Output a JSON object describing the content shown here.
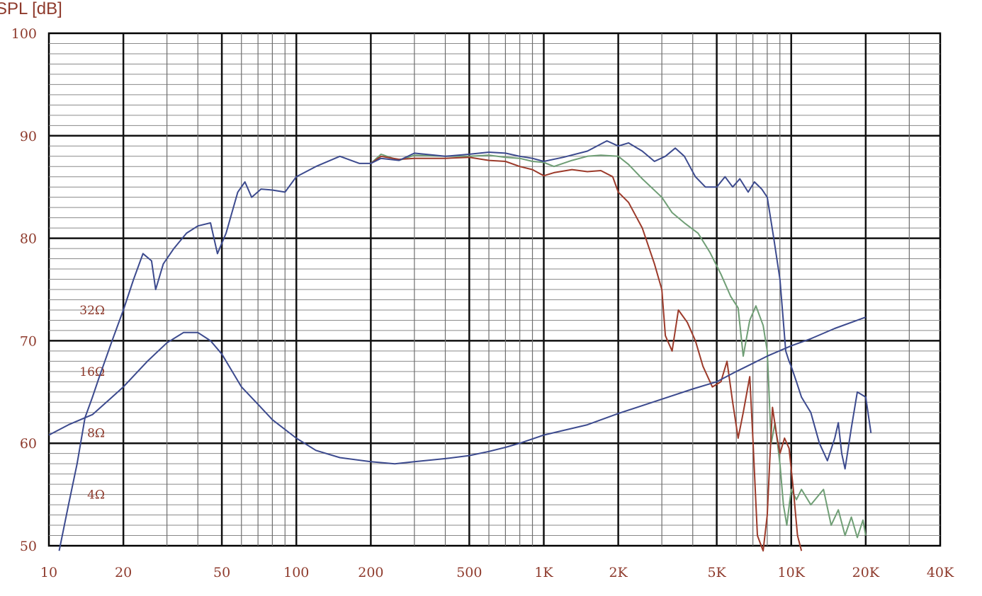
{
  "chart_data": {
    "type": "line",
    "ylabel": "SPL [dB]",
    "x_scale": "log",
    "xlim": [
      10,
      40000
    ],
    "ylim": [
      50,
      100
    ],
    "grid": true,
    "x_tick_labels": [
      {
        "v": 10,
        "t": "10"
      },
      {
        "v": 20,
        "t": "20"
      },
      {
        "v": 50,
        "t": "50"
      },
      {
        "v": 100,
        "t": "100"
      },
      {
        "v": 200,
        "t": "200"
      },
      {
        "v": 500,
        "t": "500"
      },
      {
        "v": 1000,
        "t": "1K"
      },
      {
        "v": 2000,
        "t": "2K"
      },
      {
        "v": 5000,
        "t": "5K"
      },
      {
        "v": 10000,
        "t": "10K"
      },
      {
        "v": 20000,
        "t": "20K"
      },
      {
        "v": 40000,
        "t": "40K"
      }
    ],
    "y_tick_labels": [
      {
        "v": 100,
        "t": "100"
      },
      {
        "v": 90,
        "t": "90"
      },
      {
        "v": 80,
        "t": "80"
      },
      {
        "v": 70,
        "t": "70"
      },
      {
        "v": 60,
        "t": "60"
      },
      {
        "v": 50,
        "t": "50"
      }
    ],
    "impedance_labels": [
      {
        "v": 73,
        "t": "32Ω"
      },
      {
        "v": 67,
        "t": "16Ω"
      },
      {
        "v": 61,
        "t": "8Ω"
      },
      {
        "v": 55,
        "t": "4Ω"
      }
    ],
    "colors": {
      "blue": "#3c4a8e",
      "green": "#6f9e75",
      "red": "#9c3a2a",
      "text": "#8e3a2c",
      "grid": "#000000"
    },
    "series": [
      {
        "color": "#6f9e75",
        "points": [
          [
            200,
            87.3
          ],
          [
            220,
            88.2
          ],
          [
            260,
            87.6
          ],
          [
            300,
            88.1
          ],
          [
            400,
            88.0
          ],
          [
            500,
            88.0
          ],
          [
            600,
            88.1
          ],
          [
            700,
            87.9
          ],
          [
            800,
            87.8
          ],
          [
            900,
            87.5
          ],
          [
            1000,
            87.4
          ],
          [
            1100,
            87.0
          ],
          [
            1300,
            87.6
          ],
          [
            1500,
            88.0
          ],
          [
            1700,
            88.1
          ],
          [
            2000,
            88.0
          ],
          [
            2200,
            87.2
          ],
          [
            2500,
            85.8
          ],
          [
            3000,
            84.0
          ],
          [
            3300,
            82.5
          ],
          [
            3700,
            81.5
          ],
          [
            4200,
            80.5
          ],
          [
            4700,
            78.6
          ],
          [
            5200,
            76.5
          ],
          [
            5700,
            74.3
          ],
          [
            6100,
            73.2
          ],
          [
            6400,
            68.5
          ],
          [
            6800,
            72.0
          ],
          [
            7200,
            73.4
          ],
          [
            7700,
            71.5
          ],
          [
            8000,
            69.0
          ],
          [
            8300,
            60.0
          ],
          [
            8600,
            62.0
          ],
          [
            9000,
            58.0
          ],
          [
            9300,
            54.0
          ],
          [
            9600,
            52.0
          ],
          [
            10000,
            55.5
          ],
          [
            10500,
            54.5
          ],
          [
            11000,
            55.5
          ],
          [
            12000,
            54.0
          ],
          [
            13500,
            55.5
          ],
          [
            14500,
            52.0
          ],
          [
            15500,
            53.5
          ],
          [
            16500,
            51.0
          ],
          [
            17500,
            52.8
          ],
          [
            18500,
            50.8
          ],
          [
            19500,
            52.5
          ],
          [
            20000,
            51.0
          ]
        ]
      },
      {
        "color": "#9c3a2a",
        "points": [
          [
            200,
            87.3
          ],
          [
            220,
            88.0
          ],
          [
            260,
            87.7
          ],
          [
            300,
            87.8
          ],
          [
            400,
            87.8
          ],
          [
            500,
            87.9
          ],
          [
            600,
            87.6
          ],
          [
            700,
            87.5
          ],
          [
            800,
            87.0
          ],
          [
            900,
            86.7
          ],
          [
            1000,
            86.1
          ],
          [
            1100,
            86.4
          ],
          [
            1300,
            86.7
          ],
          [
            1500,
            86.5
          ],
          [
            1700,
            86.6
          ],
          [
            1900,
            86.0
          ],
          [
            2000,
            84.5
          ],
          [
            2200,
            83.5
          ],
          [
            2500,
            81.0
          ],
          [
            2800,
            77.5
          ],
          [
            3000,
            75.0
          ],
          [
            3100,
            70.5
          ],
          [
            3300,
            69.0
          ],
          [
            3500,
            73.0
          ],
          [
            3800,
            71.8
          ],
          [
            4100,
            70.0
          ],
          [
            4400,
            67.5
          ],
          [
            4800,
            65.5
          ],
          [
            5200,
            66.0
          ],
          [
            5500,
            68.0
          ],
          [
            5800,
            64.0
          ],
          [
            6100,
            60.5
          ],
          [
            6400,
            63.0
          ],
          [
            6800,
            66.5
          ],
          [
            7000,
            60.5
          ],
          [
            7300,
            51.0
          ],
          [
            7700,
            49.5
          ],
          [
            8000,
            53.0
          ],
          [
            8200,
            58.5
          ],
          [
            8400,
            63.5
          ],
          [
            8700,
            61.0
          ],
          [
            9000,
            59.0
          ],
          [
            9400,
            60.5
          ],
          [
            9800,
            59.5
          ],
          [
            10200,
            55.5
          ],
          [
            10600,
            51.0
          ],
          [
            11000,
            49.5
          ]
        ]
      },
      {
        "color": "#3c4a8e",
        "points": [
          [
            11,
            49.5
          ],
          [
            12,
            54.0
          ],
          [
            13,
            58.0
          ],
          [
            14,
            62.5
          ],
          [
            15,
            64.5
          ],
          [
            16,
            66.5
          ],
          [
            18,
            70.0
          ],
          [
            20,
            73.0
          ],
          [
            22,
            76.0
          ],
          [
            24,
            78.5
          ],
          [
            26,
            77.8
          ],
          [
            27,
            75.0
          ],
          [
            29,
            77.5
          ],
          [
            32,
            79.0
          ],
          [
            36,
            80.5
          ],
          [
            40,
            81.2
          ],
          [
            45,
            81.5
          ],
          [
            48,
            78.5
          ],
          [
            52,
            80.5
          ],
          [
            58,
            84.5
          ],
          [
            62,
            85.5
          ],
          [
            66,
            84.0
          ],
          [
            72,
            84.8
          ],
          [
            80,
            84.7
          ],
          [
            90,
            84.5
          ],
          [
            100,
            86.0
          ],
          [
            120,
            87.0
          ],
          [
            150,
            88.0
          ],
          [
            180,
            87.3
          ],
          [
            200,
            87.3
          ],
          [
            220,
            87.8
          ],
          [
            260,
            87.6
          ],
          [
            300,
            88.3
          ],
          [
            400,
            88.0
          ],
          [
            500,
            88.2
          ],
          [
            600,
            88.4
          ],
          [
            700,
            88.3
          ],
          [
            800,
            88.0
          ],
          [
            900,
            87.8
          ],
          [
            1000,
            87.5
          ],
          [
            1200,
            87.9
          ],
          [
            1500,
            88.5
          ],
          [
            1800,
            89.5
          ],
          [
            2000,
            89.0
          ],
          [
            2200,
            89.3
          ],
          [
            2500,
            88.5
          ],
          [
            2800,
            87.5
          ],
          [
            3100,
            88.0
          ],
          [
            3400,
            88.8
          ],
          [
            3700,
            88.0
          ],
          [
            4100,
            86.0
          ],
          [
            4500,
            85.0
          ],
          [
            5000,
            85.0
          ],
          [
            5400,
            86.0
          ],
          [
            5800,
            85.0
          ],
          [
            6200,
            85.8
          ],
          [
            6700,
            84.5
          ],
          [
            7100,
            85.5
          ],
          [
            7600,
            84.8
          ],
          [
            8000,
            84.0
          ],
          [
            8500,
            80.0
          ],
          [
            9000,
            76.0
          ],
          [
            9500,
            69.0
          ],
          [
            9800,
            68.0
          ],
          [
            10000,
            67.5
          ],
          [
            10500,
            66.0
          ],
          [
            11000,
            64.5
          ],
          [
            12000,
            63.0
          ],
          [
            13000,
            60.0
          ],
          [
            14000,
            58.3
          ],
          [
            15000,
            60.5
          ],
          [
            15500,
            62.0
          ],
          [
            16000,
            59.0
          ],
          [
            16500,
            57.5
          ],
          [
            17500,
            61.5
          ],
          [
            18500,
            65.0
          ],
          [
            20000,
            64.5
          ],
          [
            21000,
            61.0
          ]
        ]
      },
      {
        "color": "#3c4a8e",
        "points": [
          [
            10,
            60.8
          ],
          [
            12,
            61.8
          ],
          [
            15,
            62.8
          ],
          [
            18,
            64.5
          ],
          [
            20,
            65.5
          ],
          [
            25,
            68.0
          ],
          [
            30,
            69.8
          ],
          [
            35,
            70.8
          ],
          [
            40,
            70.8
          ],
          [
            45,
            70.0
          ],
          [
            50,
            68.7
          ],
          [
            60,
            65.5
          ],
          [
            70,
            63.8
          ],
          [
            80,
            62.3
          ],
          [
            100,
            60.5
          ],
          [
            120,
            59.3
          ],
          [
            150,
            58.6
          ],
          [
            200,
            58.2
          ],
          [
            250,
            58.0
          ],
          [
            300,
            58.2
          ],
          [
            400,
            58.5
          ],
          [
            500,
            58.8
          ],
          [
            600,
            59.2
          ],
          [
            700,
            59.6
          ],
          [
            800,
            60.0
          ],
          [
            1000,
            60.8
          ],
          [
            1500,
            61.8
          ],
          [
            2000,
            62.9
          ],
          [
            3000,
            64.3
          ],
          [
            4000,
            65.3
          ],
          [
            5000,
            66.0
          ],
          [
            6000,
            67.0
          ],
          [
            7000,
            67.8
          ],
          [
            8000,
            68.5
          ],
          [
            10000,
            69.5
          ],
          [
            12000,
            70.2
          ],
          [
            15000,
            71.2
          ],
          [
            20000,
            72.3
          ]
        ]
      }
    ]
  }
}
